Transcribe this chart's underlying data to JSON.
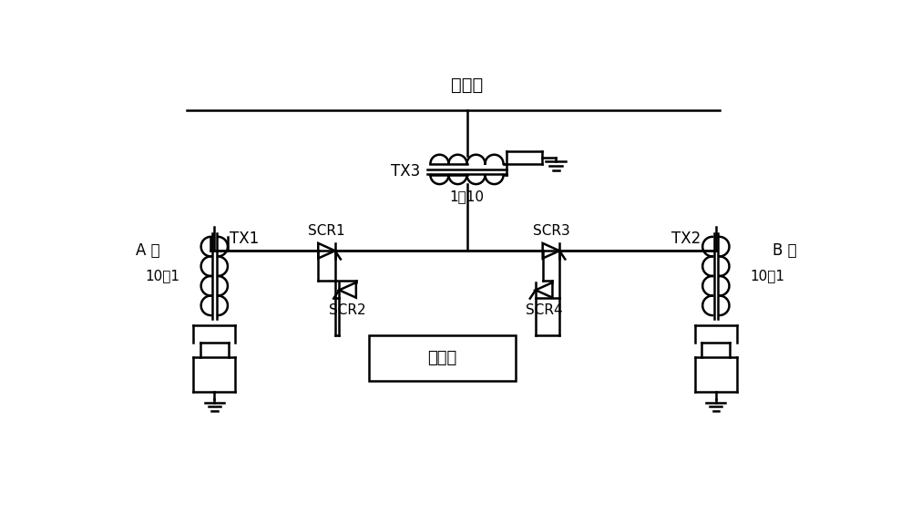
{
  "title": "中性段",
  "label_A": "A 相",
  "label_B": "B 相",
  "label_TX1": "TX1",
  "label_TX2": "TX2",
  "label_TX3": "TX3",
  "label_SCR1": "SCR1",
  "label_SCR2": "SCR2",
  "label_SCR3": "SCR3",
  "label_SCR4": "SCR4",
  "label_ratio_tx1": "10：1",
  "label_ratio_tx2": "10：1",
  "label_ratio_tx3": "1：10",
  "label_ctrl": "控制器",
  "background_color": "#ffffff",
  "line_color": "#000000",
  "line_width": 1.8,
  "font_size": 12,
  "fig_width": 10.0,
  "fig_height": 5.74
}
